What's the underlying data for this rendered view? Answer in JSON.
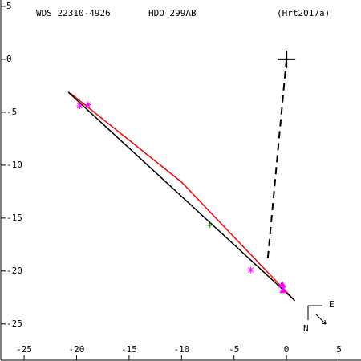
{
  "chart_data": {
    "type": "scatter",
    "title": "WDS 22310-4926",
    "subtitle": "HDO 299AB",
    "annotations": [
      "(Hrt2017a)",
      "E",
      "N"
    ],
    "xlim": [
      -27.3,
      7.1
    ],
    "ylim": [
      -28.5,
      5.6
    ],
    "xticks": [
      -25,
      -20,
      -15,
      -10,
      -5,
      0,
      5
    ],
    "yticks": [
      5,
      0,
      -5,
      -10,
      -15,
      -20,
      -25
    ],
    "series": [
      {
        "color": "#ff0000",
        "marker": "line",
        "x": [
          -20.6,
          -10,
          0.7
        ],
        "values": [
          -3.2,
          -11.6,
          -22.7
        ]
      },
      {
        "color": "#000000",
        "marker": "line",
        "x": [
          -20.8,
          0.8
        ],
        "values": [
          -3.1,
          -22.8
        ]
      },
      {
        "color": "#000000",
        "marker": "dashed",
        "x": [
          0,
          -1.8
        ],
        "values": [
          0,
          -19.0
        ]
      },
      {
        "color": "#000000",
        "marker": "cross",
        "x": [
          0
        ],
        "values": [
          0
        ]
      },
      {
        "color": "#ff00ff",
        "marker": "asterisk",
        "x": [
          -19.7,
          -18.9,
          -3.4
        ],
        "values": [
          -4.4,
          -4.3,
          -19.9
        ]
      },
      {
        "color": "#00a000",
        "marker": "plus",
        "x": [
          -7.3
        ],
        "values": [
          -15.7
        ]
      },
      {
        "color": "#ff00ff",
        "marker": "triangle",
        "x": [
          -0.4,
          -0.3
        ],
        "values": [
          -21.3,
          -21.8
        ]
      }
    ]
  }
}
